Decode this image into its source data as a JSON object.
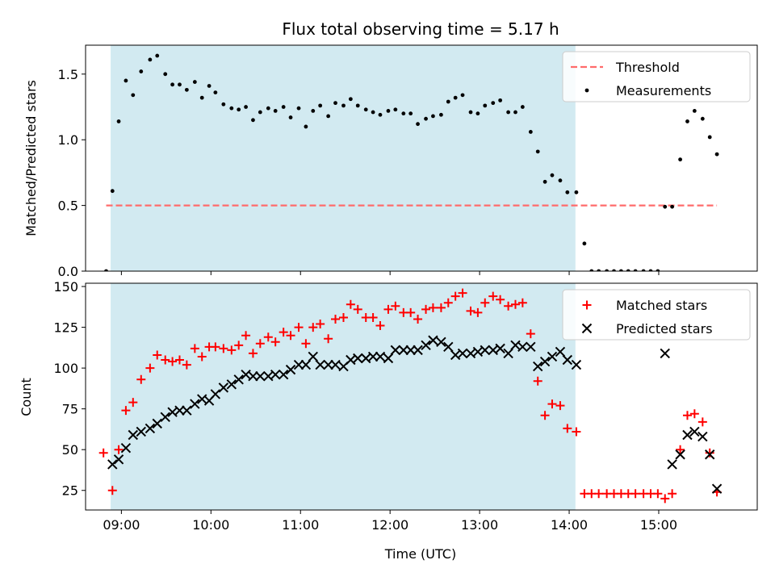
{
  "chart_data": [
    {
      "type": "scatter",
      "title": "Flux total observing time = 5.17 h",
      "xlabel": "",
      "ylabel": "Matched/Predicted stars",
      "ylim": [
        0,
        1.72
      ],
      "yticks": [
        0.0,
        0.5,
        1.0,
        1.5
      ],
      "ytick_labels": [
        "0.0",
        "0.5",
        "1.0",
        "1.5"
      ],
      "xlim": [
        8.6,
        16.1
      ],
      "xticks": [
        9,
        10,
        11,
        12,
        13,
        14,
        15
      ],
      "show_xtick_labels": false,
      "observing_window": [
        8.88,
        14.07
      ],
      "observing_window_color": "#add8e6",
      "threshold": {
        "name": "Threshold",
        "value": 0.5,
        "x_range": [
          8.83,
          15.65
        ],
        "color": "#ff6b6b"
      },
      "series": [
        {
          "name": "Measurements",
          "color": "#000000",
          "x": [
            8.83,
            8.9,
            8.97,
            9.05,
            9.13,
            9.22,
            9.32,
            9.4,
            9.49,
            9.57,
            9.65,
            9.73,
            9.82,
            9.9,
            9.98,
            10.05,
            10.14,
            10.23,
            10.31,
            10.39,
            10.47,
            10.55,
            10.64,
            10.72,
            10.81,
            10.89,
            10.98,
            11.06,
            11.14,
            11.22,
            11.31,
            11.39,
            11.48,
            11.56,
            11.64,
            11.73,
            11.81,
            11.89,
            11.98,
            12.06,
            12.15,
            12.23,
            12.31,
            12.4,
            12.48,
            12.57,
            12.65,
            12.73,
            12.81,
            12.9,
            12.98,
            13.06,
            13.15,
            13.23,
            13.32,
            13.4,
            13.48,
            13.57,
            13.65,
            13.73,
            13.81,
            13.9,
            13.98,
            14.08,
            14.17,
            14.25,
            14.33,
            14.42,
            14.5,
            14.58,
            14.66,
            14.74,
            14.83,
            14.91,
            14.99,
            15.07,
            15.15,
            15.24,
            15.32,
            15.4,
            15.49,
            15.57,
            15.65
          ],
          "y": [
            0.0,
            0.61,
            1.14,
            1.45,
            1.34,
            1.52,
            1.61,
            1.64,
            1.5,
            1.42,
            1.42,
            1.38,
            1.44,
            1.32,
            1.41,
            1.36,
            1.27,
            1.24,
            1.23,
            1.25,
            1.15,
            1.21,
            1.24,
            1.22,
            1.25,
            1.17,
            1.24,
            1.1,
            1.22,
            1.26,
            1.18,
            1.28,
            1.26,
            1.31,
            1.26,
            1.23,
            1.21,
            1.19,
            1.22,
            1.23,
            1.2,
            1.2,
            1.12,
            1.16,
            1.18,
            1.19,
            1.29,
            1.32,
            1.34,
            1.21,
            1.2,
            1.26,
            1.28,
            1.3,
            1.21,
            1.21,
            1.25,
            1.06,
            0.91,
            0.68,
            0.73,
            0.69,
            0.6,
            0.6,
            0.21,
            0.0,
            0.0,
            0.0,
            0.0,
            0.0,
            0.0,
            0.0,
            0.0,
            0.0,
            0.0,
            0.49,
            0.49,
            0.85,
            1.14,
            1.22,
            1.16,
            1.02,
            0.89
          ]
        }
      ],
      "legend": {
        "placement": "upper right",
        "entries": [
          "Threshold",
          "Measurements"
        ]
      }
    },
    {
      "type": "scatter",
      "title": "",
      "xlabel": "Time (UTC)",
      "ylabel": "Count",
      "ylim": [
        13,
        152
      ],
      "yticks": [
        25,
        50,
        75,
        100,
        125,
        150
      ],
      "ytick_labels": [
        "25",
        "50",
        "75",
        "100",
        "125",
        "150"
      ],
      "xlim": [
        8.6,
        16.1
      ],
      "xticks": [
        9,
        10,
        11,
        12,
        13,
        14,
        15
      ],
      "xtick_labels": [
        "09:00",
        "10:00",
        "11:00",
        "12:00",
        "13:00",
        "14:00",
        "15:00"
      ],
      "observing_window": [
        8.88,
        14.07
      ],
      "observing_window_color": "#add8e6",
      "series": [
        {
          "name": "Matched stars",
          "marker": "plus",
          "color": "#ff0000",
          "x": [
            8.8,
            8.9,
            8.97,
            9.05,
            9.13,
            9.22,
            9.32,
            9.4,
            9.49,
            9.57,
            9.65,
            9.73,
            9.82,
            9.9,
            9.98,
            10.05,
            10.14,
            10.23,
            10.31,
            10.39,
            10.47,
            10.55,
            10.64,
            10.72,
            10.81,
            10.89,
            10.98,
            11.06,
            11.14,
            11.22,
            11.31,
            11.39,
            11.48,
            11.56,
            11.64,
            11.73,
            11.81,
            11.89,
            11.98,
            12.06,
            12.15,
            12.23,
            12.31,
            12.4,
            12.48,
            12.57,
            12.65,
            12.73,
            12.81,
            12.9,
            12.98,
            13.06,
            13.15,
            13.23,
            13.32,
            13.4,
            13.48,
            13.57,
            13.65,
            13.73,
            13.81,
            13.9,
            13.98,
            14.08,
            14.17,
            14.25,
            14.33,
            14.42,
            14.5,
            14.58,
            14.66,
            14.74,
            14.83,
            14.91,
            14.99,
            15.07,
            15.15,
            15.24,
            15.32,
            15.4,
            15.49,
            15.57,
            15.65
          ],
          "y": [
            48,
            25,
            50,
            74,
            79,
            93,
            100,
            108,
            105,
            104,
            105,
            102,
            112,
            107,
            113,
            113,
            112,
            111,
            114,
            120,
            109,
            115,
            119,
            116,
            122,
            120,
            125,
            115,
            125,
            127,
            118,
            130,
            131,
            139,
            136,
            131,
            131,
            126,
            136,
            138,
            134,
            134,
            130,
            136,
            137,
            137,
            140,
            144,
            146,
            135,
            134,
            140,
            144,
            142,
            138,
            139,
            140,
            121,
            92,
            71,
            78,
            77,
            63,
            61,
            23,
            23,
            23,
            23,
            23,
            23,
            23,
            23,
            23,
            23,
            23,
            20,
            23,
            50,
            71,
            72,
            67,
            48,
            24
          ]
        },
        {
          "name": "Predicted stars",
          "marker": "x",
          "color": "#000000",
          "x": [
            8.9,
            8.97,
            9.05,
            9.13,
            9.22,
            9.32,
            9.4,
            9.49,
            9.57,
            9.65,
            9.73,
            9.82,
            9.9,
            9.98,
            10.05,
            10.14,
            10.23,
            10.31,
            10.39,
            10.47,
            10.55,
            10.64,
            10.72,
            10.81,
            10.89,
            10.98,
            11.06,
            11.14,
            11.22,
            11.31,
            11.39,
            11.48,
            11.56,
            11.64,
            11.73,
            11.81,
            11.89,
            11.98,
            12.06,
            12.15,
            12.23,
            12.31,
            12.4,
            12.48,
            12.57,
            12.65,
            12.73,
            12.81,
            12.9,
            12.98,
            13.06,
            13.15,
            13.23,
            13.32,
            13.4,
            13.48,
            13.57,
            13.65,
            13.73,
            13.81,
            13.9,
            13.98,
            14.08,
            15.07,
            15.15,
            15.24,
            15.32,
            15.4,
            15.49,
            15.57,
            15.65
          ],
          "y": [
            41,
            44,
            51,
            59,
            61,
            63,
            66,
            70,
            73,
            74,
            74,
            78,
            81,
            80,
            84,
            88,
            90,
            93,
            96,
            95,
            95,
            95,
            96,
            96,
            99,
            102,
            102,
            107,
            102,
            102,
            102,
            101,
            105,
            106,
            106,
            107,
            107,
            106,
            111,
            111,
            111,
            111,
            114,
            117,
            116,
            113,
            108,
            109,
            109,
            110,
            111,
            111,
            112,
            109,
            114,
            113,
            113,
            101,
            104,
            107,
            110,
            105,
            102,
            109,
            41,
            47,
            59,
            61,
            58,
            47,
            26
          ]
        }
      ],
      "legend": {
        "placement": "upper right",
        "entries": [
          "Matched stars",
          "Predicted stars"
        ]
      }
    }
  ]
}
